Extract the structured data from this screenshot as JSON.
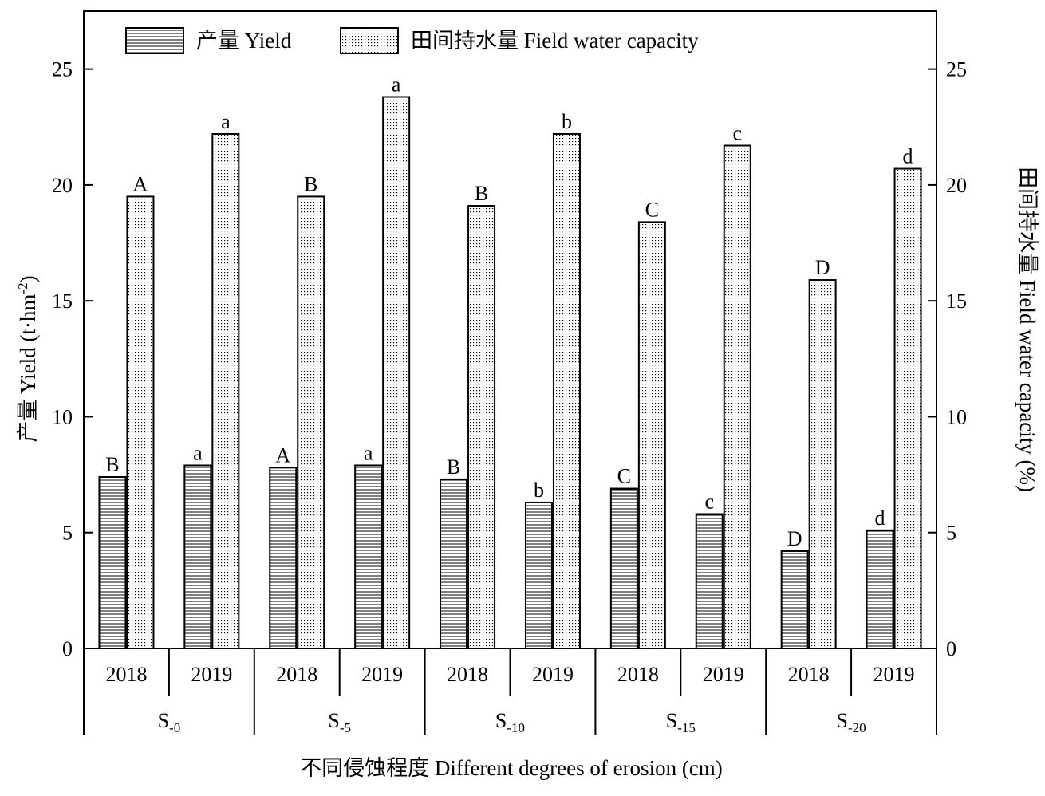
{
  "chart_data": {
    "type": "bar",
    "groups": [
      {
        "sub": "-0",
        "years": [
          "2018",
          "2019"
        ]
      },
      {
        "sub": "-5",
        "years": [
          "2018",
          "2019"
        ]
      },
      {
        "sub": "-10",
        "years": [
          "2018",
          "2019"
        ]
      },
      {
        "sub": "-15",
        "years": [
          "2018",
          "2019"
        ]
      },
      {
        "sub": "-20",
        "years": [
          "2018",
          "2019"
        ]
      }
    ],
    "group_prefix": "S",
    "series": [
      {
        "name": "产量 Yield",
        "values": [
          [
            7.4,
            7.9
          ],
          [
            7.8,
            7.9
          ],
          [
            7.3,
            6.3
          ],
          [
            6.9,
            5.8
          ],
          [
            4.2,
            5.1
          ]
        ],
        "labels": [
          [
            "B",
            "a"
          ],
          [
            "A",
            "a"
          ],
          [
            "B",
            "b"
          ],
          [
            "C",
            "c"
          ],
          [
            "D",
            "d"
          ]
        ],
        "pattern": "horizontal-lines"
      },
      {
        "name": "田间持水量 Field water capacity",
        "values": [
          [
            19.5,
            22.2
          ],
          [
            19.5,
            23.8
          ],
          [
            19.1,
            22.2
          ],
          [
            18.4,
            21.7
          ],
          [
            15.9,
            20.7
          ]
        ],
        "labels": [
          [
            "A",
            "a"
          ],
          [
            "B",
            "a"
          ],
          [
            "B",
            "b"
          ],
          [
            "C",
            "c"
          ],
          [
            "D",
            "d"
          ]
        ],
        "pattern": "dots"
      }
    ],
    "ylabel_left": "产量 Yield (t·hm",
    "ylabel_left_sup": "-2",
    "ylabel_left_end": ")",
    "ylabel_right": "田间持水量 Field water capacity (%)",
    "xlabel": "不同侵蚀程度 Different degrees of erosion (cm)",
    "ylim": [
      0,
      27.5
    ],
    "yticks": [
      0,
      5,
      10,
      15,
      20,
      25
    ],
    "legend_position": "top-left",
    "grid": false,
    "colors": {
      "bar_fill": "#ffffff",
      "stroke": "#000000",
      "pattern": "#000000"
    }
  }
}
